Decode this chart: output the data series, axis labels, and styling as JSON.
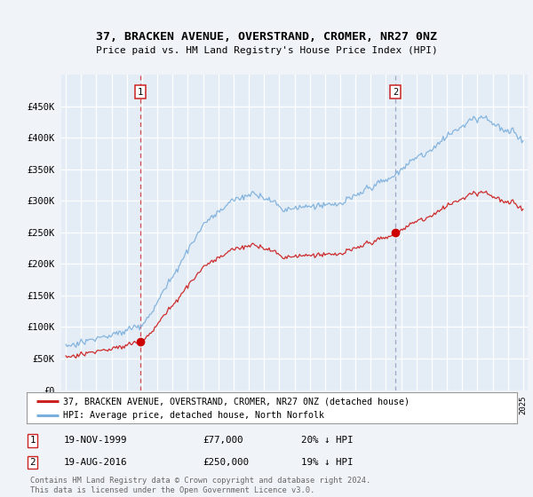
{
  "title": "37, BRACKEN AVENUE, OVERSTRAND, CROMER, NR27 0NZ",
  "subtitle": "Price paid vs. HM Land Registry's House Price Index (HPI)",
  "background_color": "#f0f4f8",
  "plot_bg_color": "#e4edf5",
  "legend_label_red": "37, BRACKEN AVENUE, OVERSTRAND, CROMER, NR27 0NZ (detached house)",
  "legend_label_blue": "HPI: Average price, detached house, North Norfolk",
  "annotation1_date": "19-NOV-1999",
  "annotation1_price": "£77,000",
  "annotation1_hpi": "20% ↓ HPI",
  "annotation2_date": "19-AUG-2016",
  "annotation2_price": "£250,000",
  "annotation2_hpi": "19% ↓ HPI",
  "footnote": "Contains HM Land Registry data © Crown copyright and database right 2024.\nThis data is licensed under the Open Government Licence v3.0.",
  "vline1_x": 1999.88,
  "vline2_x": 2016.63,
  "sale1_x": 1999.88,
  "sale1_y": 77000,
  "sale2_x": 2016.63,
  "sale2_y": 250000,
  "ylim": [
    0,
    500000
  ],
  "xlim": [
    1994.7,
    2025.3
  ]
}
